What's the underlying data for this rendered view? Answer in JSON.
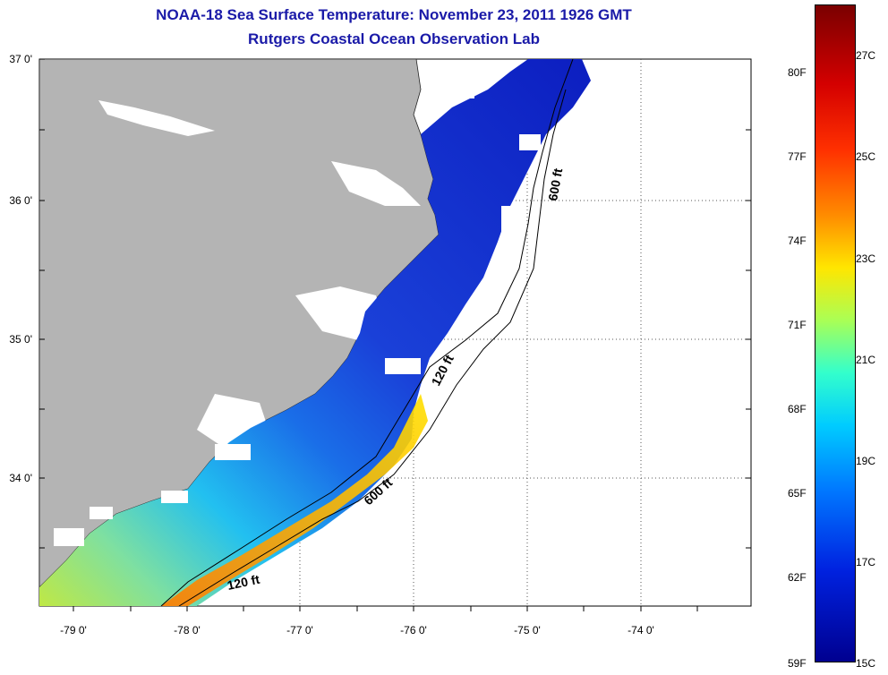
{
  "title": {
    "line1": "NOAA-18 Sea Surface Temperature:  November 23, 2011 1926 GMT",
    "line2": "Rutgers Coastal Ocean Observation Lab"
  },
  "map": {
    "lat_labels": [
      "37 0'",
      "36 0'",
      "35 0'",
      "34 0'"
    ],
    "lon_labels": [
      "-79 0'",
      "-78 0'",
      "-77 0'",
      "-76 0'",
      "-75 0'",
      "-74 0'"
    ],
    "contour_labels": [
      "600 ft",
      "120 ft",
      "600 ft",
      "120 ft"
    ],
    "land_color": "#b4b4b4",
    "cloud_color": "#ffffff"
  },
  "colorbar": {
    "fahrenheit": [
      "80F",
      "77F",
      "74F",
      "71F",
      "68F",
      "65F",
      "62F",
      "59F"
    ],
    "celsius": [
      "27C",
      "25C",
      "23C",
      "21C",
      "19C",
      "17C",
      "15C"
    ],
    "colors": [
      "#7a0000",
      "#d40000",
      "#ff3000",
      "#ff8c00",
      "#ffe600",
      "#aaff55",
      "#33ffcc",
      "#00ccff",
      "#0077ff",
      "#0022e0",
      "#000090"
    ]
  }
}
